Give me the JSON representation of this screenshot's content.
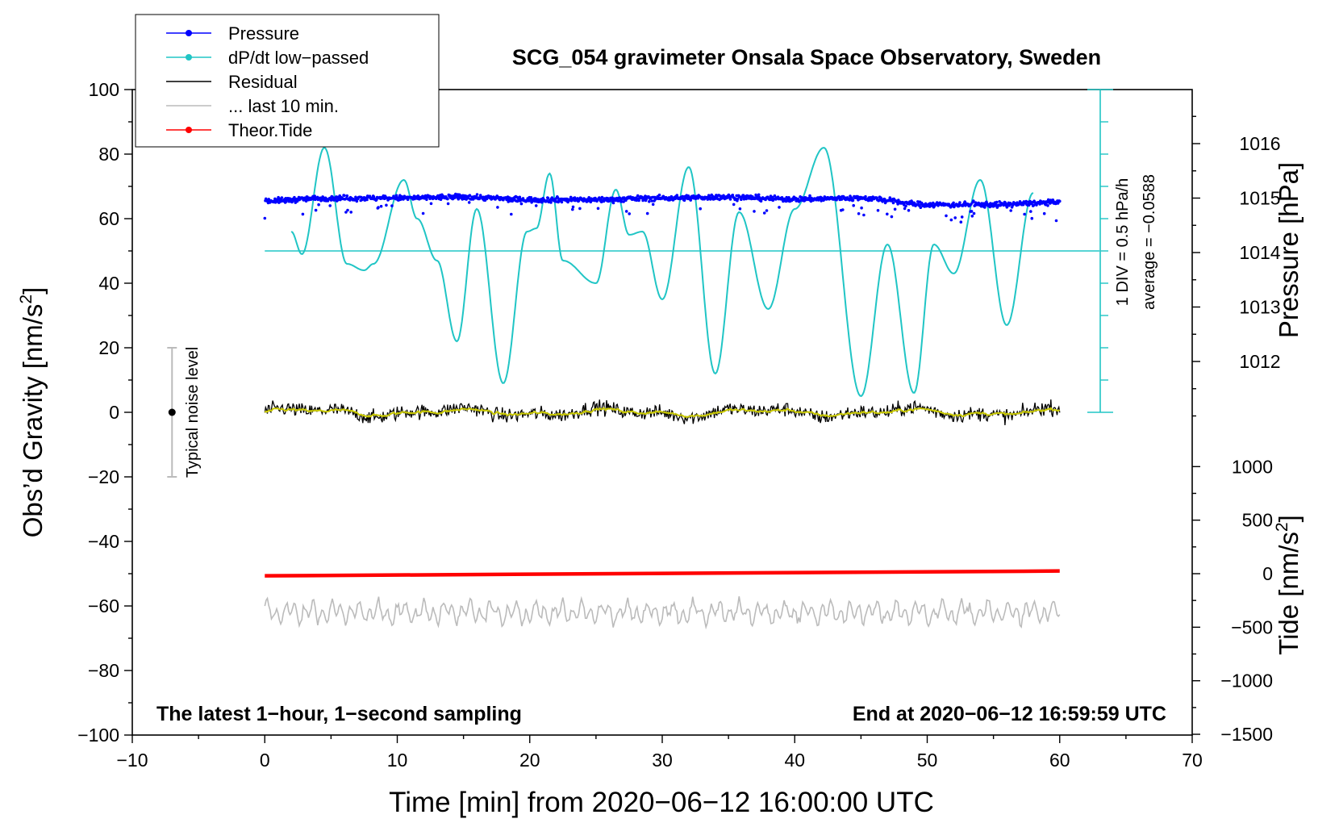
{
  "chart_data": {
    "type": "line",
    "title": "SCG_054 gravimeter Onsala Space Observatory, Sweden",
    "xlabel": "Time [min] from 2020−06−12 16:00:00 UTC",
    "ylabel_left_main": "Obs’d Gravity [nm/s",
    "ylabel_left_sup": "2",
    "ylabel_left_end": "]",
    "ylabel_right_pressure": "Pressure [hPa]",
    "ylabel_right_tide_main": "Tide [nm/s",
    "ylabel_right_tide_sup": "2",
    "ylabel_right_tide_end": "]",
    "xlim": [
      -10,
      70
    ],
    "ylim_left": [
      -100,
      100
    ],
    "pressure_range": [
      1011,
      1017
    ],
    "tide_range": [
      -1500,
      1500
    ],
    "x_ticks": [
      "−10",
      "0",
      "10",
      "20",
      "30",
      "40",
      "50",
      "60",
      "70"
    ],
    "x_tick_values": [
      -10,
      0,
      10,
      20,
      30,
      40,
      50,
      60,
      70
    ],
    "y_left_ticks": [
      "100",
      "80",
      "60",
      "40",
      "20",
      "0",
      "−20",
      "−40",
      "−60",
      "−80",
      "−100"
    ],
    "y_left_tick_values": [
      100,
      80,
      60,
      40,
      20,
      0,
      -20,
      -40,
      -60,
      -80,
      -100
    ],
    "pressure_ticks": [
      "1016",
      "1015",
      "1014",
      "1013",
      "1012"
    ],
    "pressure_tick_values": [
      1016,
      1015,
      1014,
      1013,
      1012
    ],
    "tide_ticks": [
      "1000",
      "500",
      "0",
      "−500",
      "−1000",
      "−1500"
    ],
    "tide_tick_values": [
      1000,
      500,
      0,
      -500,
      -1000,
      -1500
    ],
    "legend": [
      {
        "label": "Pressure",
        "color": "#0000ff",
        "marker": true
      },
      {
        "label": "dP/dt low−passed",
        "color": "#20c5c5",
        "marker": true
      },
      {
        "label": "Residual",
        "color": "#000000",
        "marker": false
      },
      {
        "label": "... last 10 min.",
        "color": "#bbbbbb",
        "marker": false
      },
      {
        "label": "Theor.Tide",
        "color": "#ff0000",
        "marker": true
      }
    ],
    "legend_position": "top-left",
    "series": [
      {
        "name": "Pressure",
        "axis": "pressure",
        "color": "#0000ff",
        "x": [
          0,
          5,
          10,
          15,
          20,
          25,
          30,
          35,
          40,
          45,
          50,
          55,
          60
        ],
        "values": [
          1014.95,
          1015.0,
          1015.0,
          1015.02,
          1014.97,
          1014.97,
          1015.0,
          1015.02,
          1014.98,
          1015.0,
          1014.88,
          1014.88,
          1014.92
        ]
      },
      {
        "name": "dP/dt low−passed",
        "axis": "gravity",
        "color": "#20c5c5",
        "x": [
          2.0,
          2.8,
          4.5,
          6.2,
          7.5,
          8.2,
          10.5,
          11.5,
          13.0,
          14.5,
          16.0,
          18.0,
          19.8,
          20.5,
          21.5,
          22.5,
          25.0,
          26.5,
          27.5,
          28.5,
          30.0,
          32.0,
          34.0,
          35.8,
          38.0,
          40.0,
          42.2,
          45.0,
          47.0,
          49.0,
          50.5,
          52.0,
          54.0,
          56.0,
          58.0
        ],
        "values": [
          56,
          49,
          82,
          46,
          44,
          46,
          72,
          60,
          47,
          22,
          63,
          9,
          56,
          57,
          74,
          47,
          40,
          69,
          55,
          56,
          35,
          76,
          12,
          62,
          32,
          63,
          82,
          5,
          52,
          6,
          52,
          43,
          72,
          27,
          68
        ]
      },
      {
        "name": "Residual",
        "axis": "gravity",
        "color": "#000000",
        "x": [
          0,
          60
        ],
        "values": [
          0,
          0
        ]
      },
      {
        "name": "... last 10 min.",
        "axis": "gravity",
        "color": "#bbbbbb",
        "x": [
          0,
          60
        ],
        "values": [
          -62,
          -62
        ]
      },
      {
        "name": "Theor.Tide",
        "axis": "tide",
        "color": "#ff0000",
        "x": [
          0,
          60
        ],
        "values": [
          -20,
          25
        ]
      }
    ],
    "dpdt_reference_level": 50,
    "dpdt_scale_label": "1 DIV = 0.5 hPa/h",
    "dpdt_average_label": "average = −0.0588",
    "noise_label": "Typical noise level",
    "noise_range": [
      -20,
      20
    ],
    "footer_left": "The latest 1−hour, 1−second sampling",
    "footer_right": "End at 2020−06−12 16:59:59 UTC",
    "colors": {
      "pressure": "#0000ff",
      "dpdt": "#20c5c5",
      "residual": "#000000",
      "residual_smooth": "#c8c800",
      "last10": "#bbbbbb",
      "tide": "#ff0000",
      "noise_bar": "#bbbbbb"
    }
  }
}
